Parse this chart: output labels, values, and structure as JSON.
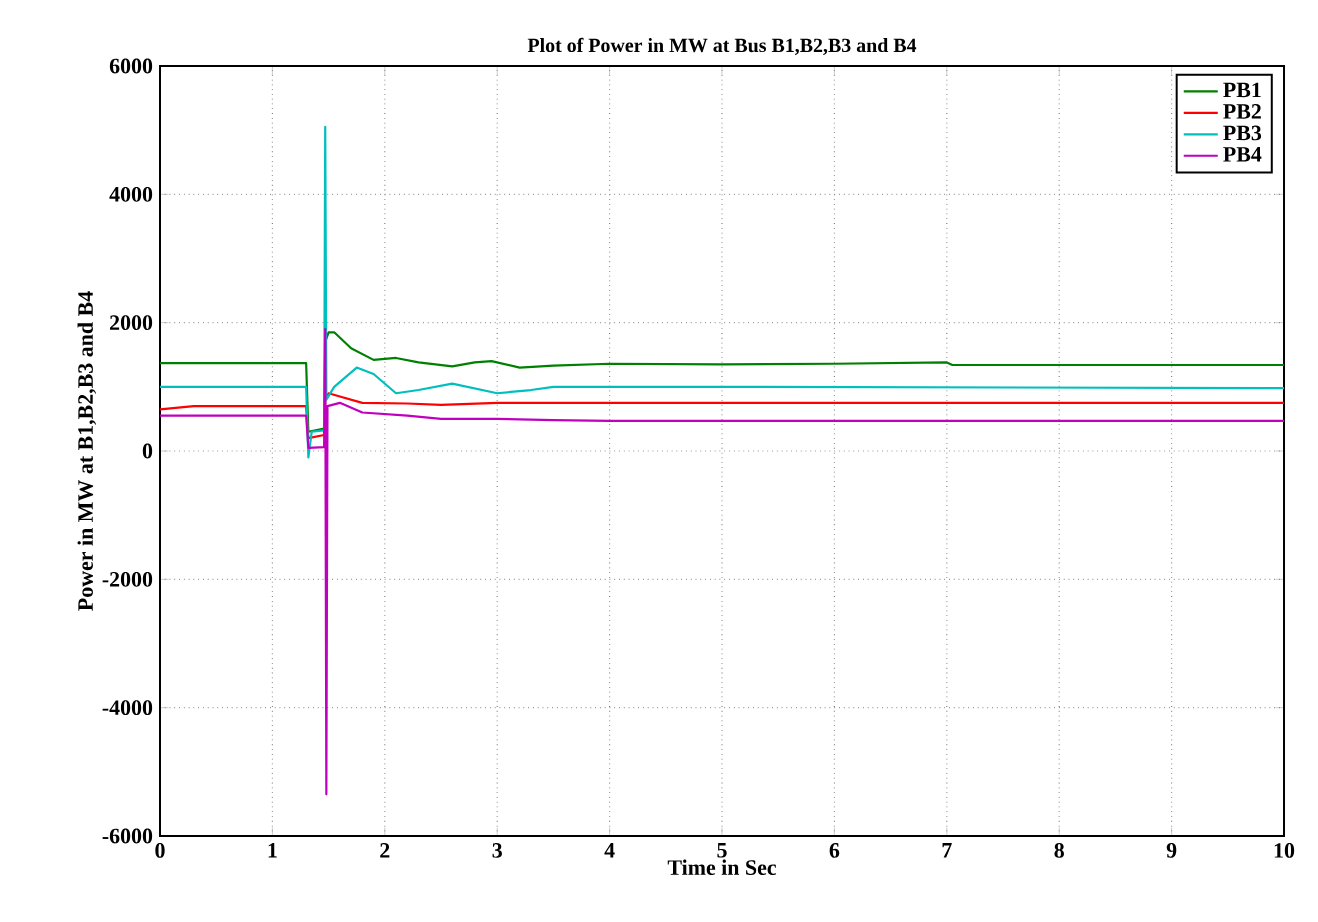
{
  "chart_data": {
    "type": "line",
    "title": "Plot of Power in MW at Bus B1,B2,B3 and B4",
    "xlabel": "Time in Sec",
    "ylabel": "Power in MW at B1,B2,B3 and B4",
    "xlim": [
      0,
      10
    ],
    "ylim": [
      -6000,
      6000
    ],
    "xticks": [
      0,
      1,
      2,
      3,
      4,
      5,
      6,
      7,
      8,
      9,
      10
    ],
    "yticks": [
      -6000,
      -4000,
      -2000,
      0,
      2000,
      4000,
      6000
    ],
    "grid": true,
    "legend": "top right",
    "line_style": "solid",
    "series": [
      {
        "name": "PB1",
        "color": "#008000",
        "x": [
          0,
          1.3,
          1.32,
          1.46,
          1.47,
          1.5,
          1.55,
          1.7,
          1.9,
          2.1,
          2.3,
          2.6,
          2.8,
          2.95,
          3.2,
          3.5,
          4,
          5,
          6,
          7,
          7.05,
          10
        ],
        "values": [
          1370,
          1370,
          300,
          350,
          1700,
          1850,
          1850,
          1600,
          1420,
          1450,
          1380,
          1320,
          1380,
          1400,
          1300,
          1330,
          1360,
          1350,
          1360,
          1380,
          1340,
          1340
        ]
      },
      {
        "name": "PB2",
        "color": "#ff0000",
        "x": [
          0,
          0.3,
          1.3,
          1.32,
          1.46,
          1.47,
          1.5,
          1.6,
          1.8,
          2.2,
          2.5,
          3,
          10
        ],
        "values": [
          650,
          700,
          700,
          200,
          250,
          800,
          900,
          850,
          750,
          740,
          720,
          750,
          750
        ]
      },
      {
        "name": "PB3",
        "color": "#00bfbf",
        "x": [
          0,
          1.3,
          1.32,
          1.35,
          1.46,
          1.47,
          1.48,
          1.55,
          1.75,
          1.9,
          2.1,
          2.3,
          2.6,
          3,
          3.3,
          3.5,
          5,
          10
        ],
        "values": [
          1000,
          1000,
          -100,
          300,
          320,
          5050,
          800,
          1000,
          1300,
          1200,
          900,
          950,
          1050,
          900,
          950,
          1000,
          1000,
          980
        ]
      },
      {
        "name": "PB4",
        "color": "#bf00bf",
        "x": [
          0,
          1.3,
          1.32,
          1.46,
          1.47,
          1.48,
          1.49,
          1.6,
          1.8,
          2.2,
          2.5,
          3,
          3.5,
          4,
          10
        ],
        "values": [
          550,
          550,
          50,
          60,
          1900,
          -5350,
          700,
          750,
          600,
          550,
          500,
          500,
          480,
          470,
          470
        ]
      }
    ]
  }
}
